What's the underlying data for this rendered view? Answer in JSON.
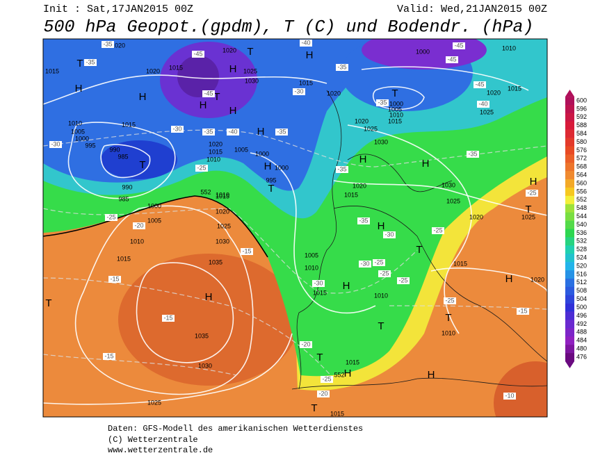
{
  "header": {
    "init": "Init : Sat,17JAN2015 00Z",
    "valid": "Valid: Wed,21JAN2015 00Z",
    "title": "500 hPa Geopot.(gpdm), T (C) und Bodendr. (hPa)"
  },
  "map": {
    "highs_lows": [
      "H",
      "H",
      "H",
      "H",
      "H",
      "H",
      "H",
      "H",
      "H",
      "H",
      "H",
      "H",
      "H",
      "H",
      "H",
      "H",
      "H",
      "T",
      "T",
      "T",
      "T",
      "T",
      "T",
      "T",
      "T",
      "T",
      "T",
      "T",
      "T",
      "T"
    ],
    "isobar_labels": [
      "1020",
      "1015",
      "1020",
      "1015",
      "1020",
      "1025",
      "1030",
      "1015",
      "1020",
      "1015",
      "1010",
      "1005",
      "1000",
      "995",
      "990",
      "985",
      "1020",
      "1015",
      "1010",
      "1005",
      "1000",
      "1000",
      "995",
      "990",
      "985",
      "1000",
      "1005",
      "1010",
      "1015",
      "1010",
      "1015",
      "1020",
      "1025",
      "1030",
      "1035",
      "1035",
      "1030",
      "1025",
      "1000",
      "1010",
      "1015",
      "1020",
      "1025",
      "1000",
      "1005",
      "1010",
      "1015",
      "1020",
      "1025",
      "1030",
      "1030",
      "1025",
      "1020",
      "1015",
      "1020",
      "1025",
      "1015",
      "1020",
      "1005",
      "1010",
      "1015",
      "1010",
      "1010",
      "1015",
      "1015"
    ],
    "temperature_labels": [
      "-35",
      "-35",
      "-45",
      "-45",
      "-40",
      "-35",
      "-30",
      "-45",
      "-45",
      "-45",
      "-40",
      "-35",
      "-30",
      "-30",
      "-35",
      "-40",
      "-35",
      "-25",
      "-35",
      "-35",
      "-25",
      "-20",
      "-25",
      "-35",
      "-30",
      "-25",
      "-25",
      "-30",
      "-25",
      "-25",
      "-30",
      "-15",
      "-15",
      "-15",
      "-20",
      "-25",
      "-20",
      "-25",
      "-15",
      "-10",
      "-15"
    ],
    "height_labels": [
      "552",
      "552"
    ]
  },
  "colorbar": {
    "ticks": [
      600,
      596,
      592,
      588,
      584,
      580,
      576,
      572,
      568,
      564,
      560,
      556,
      552,
      548,
      544,
      540,
      536,
      532,
      528,
      524,
      520,
      516,
      512,
      508,
      504,
      500,
      496,
      492,
      488,
      484,
      480,
      476
    ]
  },
  "footer": {
    "line1": "Daten: GFS-Modell des amerikanischen Wetterdienstes",
    "line2": "(C) Wetterzentrale",
    "line3": "www.wetterzentrale.de"
  }
}
